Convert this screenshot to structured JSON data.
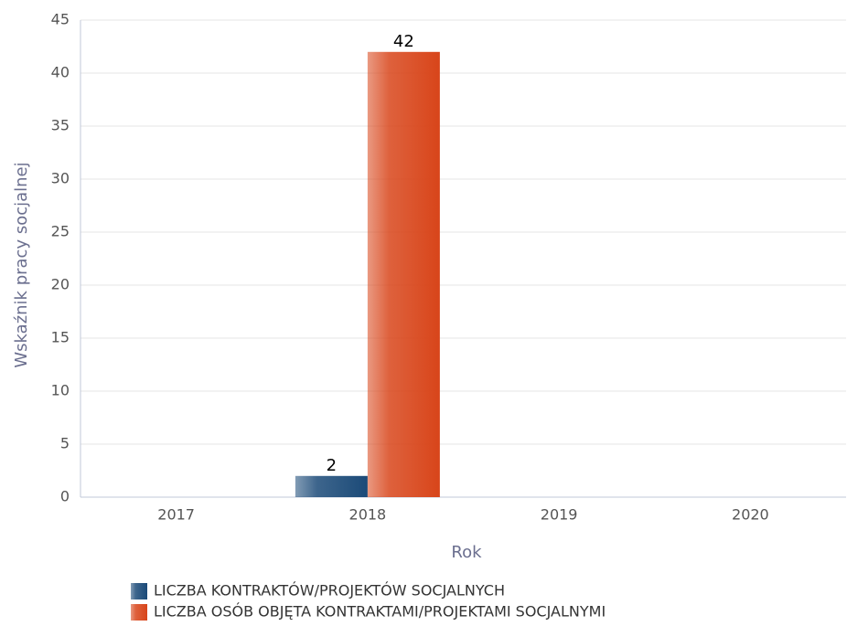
{
  "chart_data": {
    "type": "bar",
    "y_label": "Wskaźnik pracy socjalnej",
    "x_label": "Rok",
    "categories": [
      "2017",
      "2018",
      "2019",
      "2020"
    ],
    "series": [
      {
        "name": "LICZBA KONTRAKTÓW/PROJEKTÓW SOCJALNYCH",
        "color": "#1b4a78",
        "values": [
          null,
          2,
          null,
          null
        ]
      },
      {
        "name": "LICZBA OSÓB OBJĘTA KONTRAKTAMI/PROJEKTAMI SOCJALNYMI",
        "color": "#d8451a",
        "values": [
          null,
          42,
          null,
          null
        ]
      }
    ],
    "ylim": [
      0,
      45
    ],
    "yticks": [
      0,
      5,
      10,
      15,
      20,
      25,
      30,
      35,
      40,
      45
    ],
    "grid": true
  }
}
